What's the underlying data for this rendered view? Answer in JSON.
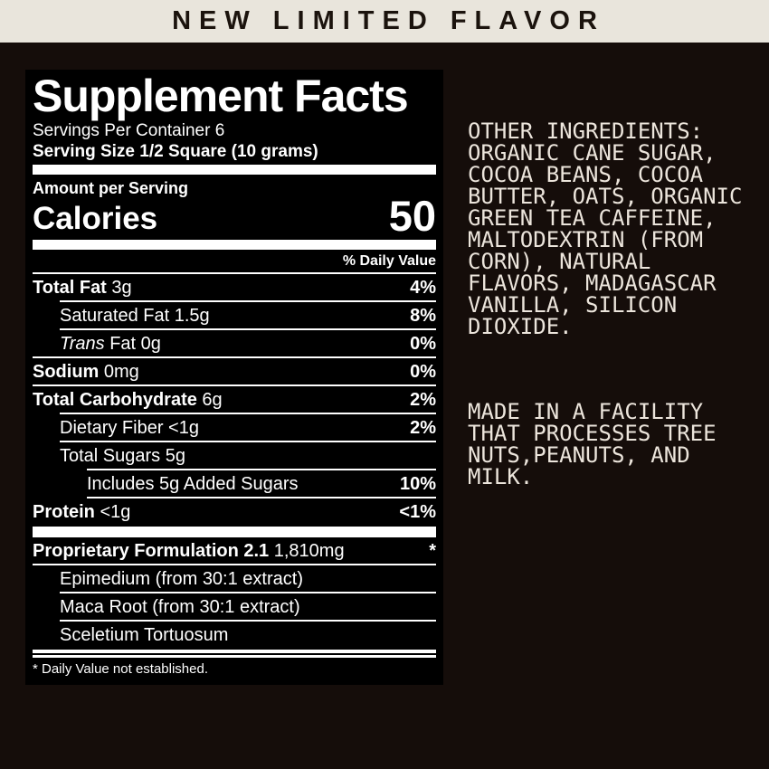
{
  "banner": {
    "text": "NEW LIMITED FLAVOR"
  },
  "panel": {
    "title": "Supplement Facts",
    "servings_per_container": "Servings Per Container 6",
    "serving_size": "Serving Size 1/2 Square (10 grams)",
    "amount_per_serving": "Amount per Serving",
    "calories_label": "Calories",
    "calories_value": "50",
    "daily_value_header": "% Daily Value",
    "nutrient_rows": [
      {
        "italic": "",
        "bold": "Total Fat",
        "regular": " 3g",
        "value": "4%",
        "indent": 0,
        "sep": 1
      },
      {
        "italic": "",
        "bold": "",
        "regular": "Saturated Fat 1.5g",
        "value": "8%",
        "indent": 1,
        "sep": 1
      },
      {
        "italic": "Trans",
        "bold": "",
        "regular": " Fat 0g",
        "value": "0%",
        "indent": 1,
        "sep": 0
      },
      {
        "italic": "",
        "bold": "Sodium",
        "regular": " 0mg",
        "value": "0%",
        "indent": 0,
        "sep": 0
      },
      {
        "italic": "",
        "bold": "Total Carbohydrate",
        "regular": " 6g",
        "value": "2%",
        "indent": 0,
        "sep": 1
      },
      {
        "italic": "",
        "bold": "",
        "regular": "Dietary Fiber <1g",
        "value": "2%",
        "indent": 1,
        "sep": 1
      },
      {
        "italic": "",
        "bold": "",
        "regular": "Total Sugars 5g",
        "value": "",
        "indent": 1,
        "sep": 2
      },
      {
        "italic": "",
        "bold": "",
        "regular": "Includes 5g Added Sugars",
        "value": "10%",
        "indent": 2,
        "sep": 2
      },
      {
        "italic": "",
        "bold": "Protein",
        "regular": " <1g",
        "value": "<1%",
        "indent": 0,
        "sep": null
      }
    ],
    "formulation_rows": [
      {
        "italic": "",
        "bold": "Proprietary Formulation 2.1",
        "regular": " 1,810mg",
        "value": "*",
        "indent": 0,
        "sep": 0
      },
      {
        "italic": "",
        "bold": "",
        "regular": "Epimedium (from 30:1 extract)",
        "value": "",
        "indent": 1,
        "sep": 1
      },
      {
        "italic": "",
        "bold": "",
        "regular": "Maca Root (from 30:1 extract)",
        "value": "",
        "indent": 1,
        "sep": 1
      },
      {
        "italic": "",
        "bold": "",
        "regular": "Sceletium Tortuosum",
        "value": "",
        "indent": 1,
        "sep": null
      }
    ],
    "footnote": "* Daily Value not established."
  },
  "side_text": {
    "other_ingredients_lines": [
      "OTHER INGREDIENTS:",
      "ORGANIC CANE SUGAR,",
      "COCOA BEANS, COCOA",
      "BUTTER, OATS, ORGANIC",
      "GREEN TEA CAFFEINE,",
      "MALTODEXTRIN (FROM",
      "CORN), NATURAL",
      "FLAVORS, MADAGASCAR",
      "VANILLA, SILICON",
      "DIOXIDE."
    ],
    "allergen_lines": [
      "MADE IN A FACILITY",
      "THAT PROCESSES TREE",
      "NUTS,PEANUTS, AND",
      "MILK."
    ]
  },
  "colors": {
    "page_bg": "#150d0a",
    "banner_bg": "#e9e5dc",
    "banner_text": "#1b130d",
    "panel_bg": "#000000",
    "panel_text": "#ffffff",
    "side_text": "#ece5dc"
  }
}
